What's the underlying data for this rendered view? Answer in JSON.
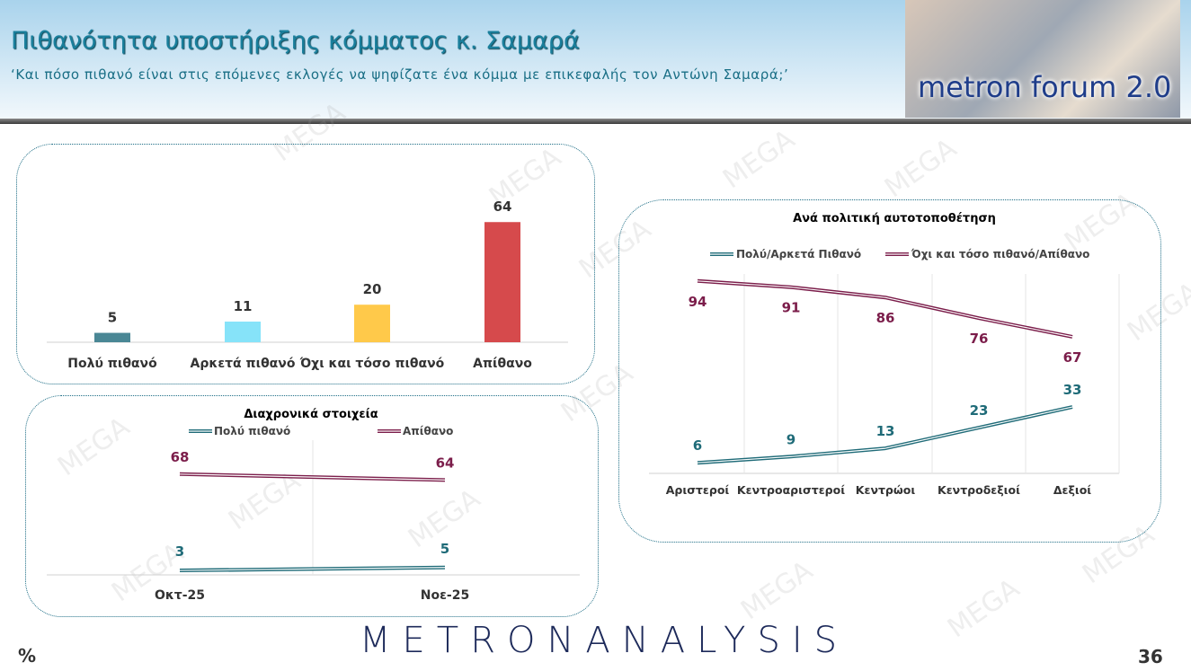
{
  "header": {
    "title": "Πιθανότητα υποστήριξης κόμματος κ. Σαμαρά",
    "subtitle": "‘Και πόσο πιθανό είναι στις επόμενες εκλογές να ψηφίζατε ένα κόμμα με επικεφαλής τον Αντώνη Σαμαρά;’",
    "logo_text": "metron forum 2.0"
  },
  "footer": {
    "brand": "METRONANALYSIS",
    "unit": "%",
    "page_number": "36"
  },
  "watermark": "MEGA",
  "chart_data": [
    {
      "type": "bar",
      "title": "",
      "categories": [
        "Πολύ πιθανό",
        "Αρκετά πιθανό",
        "Όχι και τόσο πιθανό",
        "Απίθανο"
      ],
      "values": [
        5,
        11,
        20,
        64
      ],
      "colors": [
        "#4a8795",
        "#86e3f9",
        "#ffc94a",
        "#d64a4c"
      ],
      "ylim": [
        0,
        70
      ],
      "grid": false
    },
    {
      "type": "line",
      "title": "Διαχρονικά στοιχεία",
      "categories": [
        "Οκτ-25",
        "Νοε-25"
      ],
      "series": [
        {
          "name": "Πολύ πιθανό",
          "values": [
            3,
            5
          ],
          "color": "#1f6b78"
        },
        {
          "name": "Απίθανο",
          "values": [
            68,
            64
          ],
          "color": "#7b1d4a"
        }
      ],
      "legend": "top",
      "grid": true
    },
    {
      "type": "line",
      "title": "Ανά πολιτική αυτοτοποθέτηση",
      "categories": [
        "Αριστεροί",
        "Κεντροαριστεροί",
        "Κεντρώοι",
        "Κεντροδεξιοί",
        "Δεξιοί"
      ],
      "series": [
        {
          "name": "Πολύ/Αρκετά Πιθανό",
          "values": [
            6,
            9,
            13,
            23,
            33
          ],
          "color": "#1f6b78"
        },
        {
          "name": "Όχι και τόσο πιθανό/Απίθανο",
          "values": [
            94,
            91,
            86,
            76,
            67
          ],
          "color": "#7b1d4a"
        }
      ],
      "legend": "top",
      "grid": true
    }
  ]
}
